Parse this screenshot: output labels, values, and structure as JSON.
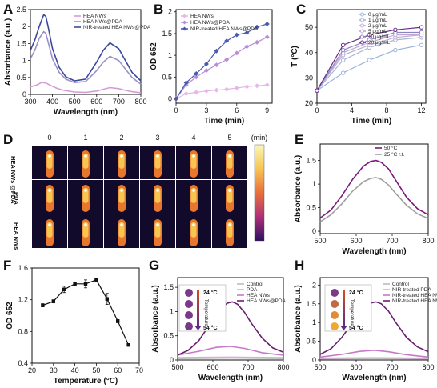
{
  "figure": {
    "panel_labels": [
      "A",
      "B",
      "C",
      "D",
      "E",
      "F",
      "G",
      "H"
    ]
  },
  "chart_data": [
    {
      "panel": "A",
      "type": "line",
      "xlabel": "Wavelength (nm)",
      "ylabel": "Absorbance (a.u.)",
      "xlim": [
        300,
        800
      ],
      "ylim": [
        0,
        2.5
      ],
      "xticks": [
        300,
        400,
        500,
        600,
        700,
        800
      ],
      "yticks": [
        0,
        0.5,
        1,
        1.5,
        2,
        2.5
      ],
      "grid": false,
      "legend": "top-right",
      "series": [
        {
          "name": "HEA NWs",
          "color": "#d59bd5",
          "x": [
            300,
            330,
            350,
            370,
            390,
            420,
            450,
            500,
            550,
            600,
            630,
            660,
            700,
            730,
            760,
            800
          ],
          "y": [
            0.22,
            0.28,
            0.35,
            0.34,
            0.27,
            0.18,
            0.12,
            0.07,
            0.06,
            0.1,
            0.15,
            0.2,
            0.17,
            0.12,
            0.08,
            0.05
          ]
        },
        {
          "name": "HEA NWs@PDA",
          "color": "#9a8fc9",
          "x": [
            300,
            320,
            340,
            360,
            370,
            380,
            400,
            430,
            460,
            500,
            550,
            600,
            630,
            660,
            700,
            730,
            760,
            800
          ],
          "y": [
            1.05,
            1.3,
            1.65,
            1.85,
            1.8,
            1.55,
            1.05,
            0.65,
            0.45,
            0.35,
            0.38,
            0.7,
            0.95,
            1.12,
            1.0,
            0.75,
            0.5,
            0.3
          ]
        },
        {
          "name": "NIR-treated HEA NWs@PDA",
          "color": "#3a4a9a",
          "x": [
            300,
            320,
            340,
            360,
            370,
            380,
            400,
            430,
            460,
            500,
            550,
            600,
            630,
            660,
            700,
            730,
            760,
            800
          ],
          "y": [
            1.3,
            1.6,
            2.0,
            2.35,
            2.3,
            2.0,
            1.35,
            0.8,
            0.52,
            0.4,
            0.45,
            0.95,
            1.3,
            1.52,
            1.35,
            1.0,
            0.65,
            0.4
          ]
        }
      ]
    },
    {
      "panel": "B",
      "type": "line",
      "xlabel": "Time (min)",
      "ylabel": "OD 652",
      "xlim": [
        0,
        9.5
      ],
      "ylim": [
        -0.1,
        2.05
      ],
      "xticks": [
        0,
        3,
        6,
        9
      ],
      "yticks": [
        0,
        0.5,
        1,
        1.5,
        2
      ],
      "grid": false,
      "legend": "top-left",
      "series": [
        {
          "name": "HEA NWs",
          "color": "#e7b8e7",
          "x": [
            0,
            1,
            2,
            3,
            4,
            5,
            6,
            7,
            8,
            9
          ],
          "y": [
            0,
            0.12,
            0.15,
            0.18,
            0.2,
            0.22,
            0.25,
            0.28,
            0.3,
            0.32
          ]
        },
        {
          "name": "HEA NWs@PDA",
          "color": "#b78fd6",
          "x": [
            0,
            1,
            2,
            3,
            4,
            5,
            6,
            7,
            8,
            9
          ],
          "y": [
            0,
            0.32,
            0.5,
            0.65,
            0.78,
            0.9,
            1.05,
            1.2,
            1.3,
            1.42
          ]
        },
        {
          "name": "NIR-treated HEA NWs@PDA",
          "color": "#4a5ab0",
          "x": [
            0,
            1,
            2,
            3,
            4,
            5,
            6,
            7,
            8,
            9
          ],
          "y": [
            0,
            0.37,
            0.58,
            0.8,
            1.1,
            1.33,
            1.47,
            1.52,
            1.65,
            1.72
          ]
        }
      ]
    },
    {
      "panel": "C",
      "type": "line",
      "xlabel": "Time (min)",
      "ylabel": "T (°C)",
      "xlim": [
        0,
        12.5
      ],
      "ylim": [
        20,
        57
      ],
      "xticks": [
        0,
        4,
        8,
        12
      ],
      "yticks": [
        20,
        30,
        40,
        50
      ],
      "grid": false,
      "legend": "top-right",
      "series": [
        {
          "name": "0 μg/mL",
          "color": "#9ab3dc",
          "x": [
            0,
            3,
            6,
            9,
            12
          ],
          "y": [
            25,
            32,
            37,
            41,
            43
          ]
        },
        {
          "name": "1 μg/mL",
          "color": "#a7b7d6",
          "x": [
            0,
            3,
            6,
            9,
            12
          ],
          "y": [
            25,
            37,
            42,
            45,
            46
          ]
        },
        {
          "name": "2 μg/mL",
          "color": "#b9b0d3",
          "x": [
            0,
            3,
            6,
            9,
            12
          ],
          "y": [
            25,
            39,
            43,
            46,
            47
          ]
        },
        {
          "name": "5 μg/mL",
          "color": "#c6a9d1",
          "x": [
            0,
            3,
            6,
            9,
            12
          ],
          "y": [
            25,
            40,
            44,
            47,
            47
          ]
        },
        {
          "name": "10 μg/mL",
          "color": "#8a86c4",
          "x": [
            0,
            3,
            6,
            9,
            12
          ],
          "y": [
            25,
            41,
            45,
            48,
            48
          ]
        },
        {
          "name": "20 μg/mL",
          "color": "#6a2c8a",
          "x": [
            0,
            3,
            6,
            9,
            12
          ],
          "y": [
            25,
            43,
            47,
            49,
            50
          ]
        }
      ]
    },
    {
      "panel": "E",
      "type": "line",
      "xlabel": "Wavelength (nm)",
      "ylabel": "Absorbance (a.u.)",
      "xlim": [
        500,
        800
      ],
      "ylim": [
        -0.05,
        1.85
      ],
      "xticks": [
        500,
        600,
        700,
        800
      ],
      "yticks": [
        0,
        0.5,
        1,
        1.5
      ],
      "grid": false,
      "legend": "top-right",
      "series": [
        {
          "name": "50 °C",
          "color": "#7a1a7a",
          "x": [
            500,
            530,
            560,
            590,
            620,
            640,
            655,
            670,
            690,
            710,
            740,
            770,
            800
          ],
          "y": [
            0.28,
            0.45,
            0.75,
            1.1,
            1.38,
            1.48,
            1.5,
            1.46,
            1.32,
            1.08,
            0.72,
            0.48,
            0.35
          ]
        },
        {
          "name": "25 °C r.t.",
          "color": "#9e9e9e",
          "x": [
            500,
            530,
            560,
            590,
            620,
            640,
            655,
            670,
            690,
            710,
            740,
            770,
            800
          ],
          "y": [
            0.2,
            0.35,
            0.58,
            0.85,
            1.05,
            1.12,
            1.14,
            1.1,
            0.98,
            0.8,
            0.55,
            0.37,
            0.27
          ]
        }
      ]
    },
    {
      "panel": "F",
      "type": "line",
      "xlabel": "Temperature (°C)",
      "ylabel": "OD 652",
      "xlim": [
        20,
        70
      ],
      "ylim": [
        0.4,
        1.6
      ],
      "xticks": [
        20,
        30,
        40,
        50,
        60,
        70
      ],
      "yticks": [
        0.4,
        0.8,
        1.2,
        1.6
      ],
      "grid": false,
      "x": [
        25,
        30,
        35,
        40,
        45,
        50,
        55,
        60,
        65
      ],
      "y": [
        1.13,
        1.18,
        1.33,
        1.4,
        1.4,
        1.45,
        1.21,
        0.93,
        0.63
      ],
      "errors": [
        0.02,
        0.02,
        0.04,
        0.02,
        0.05,
        0.02,
        0.07,
        0.02,
        0.01
      ]
    },
    {
      "panel": "G",
      "type": "line",
      "xlabel": "Wavelength (nm)",
      "ylabel": "Absorbance (a.u.)",
      "xlim": [
        500,
        800
      ],
      "ylim": [
        0,
        1.7
      ],
      "xticks": [
        500,
        600,
        700,
        800
      ],
      "yticks": [
        0,
        0.5,
        1,
        1.5
      ],
      "grid": false,
      "legend": "top-right",
      "series": [
        {
          "name": "Control",
          "color": "#bdbdbd",
          "x": [
            500,
            650,
            800
          ],
          "y": [
            0.03,
            0.04,
            0.03
          ]
        },
        {
          "name": "PDA",
          "color": "#e2a6e2",
          "x": [
            500,
            650,
            800
          ],
          "y": [
            0.05,
            0.06,
            0.05
          ]
        },
        {
          "name": "HEA NWs",
          "color": "#c779c7",
          "x": [
            500,
            560,
            610,
            650,
            690,
            740,
            800
          ],
          "y": [
            0.1,
            0.18,
            0.26,
            0.28,
            0.24,
            0.15,
            0.1
          ]
        },
        {
          "name": "HEA NWs@PDA",
          "color": "#6a1d6e",
          "x": [
            500,
            530,
            560,
            590,
            620,
            640,
            655,
            670,
            690,
            710,
            740,
            770,
            800
          ],
          "y": [
            0.1,
            0.2,
            0.4,
            0.72,
            1.03,
            1.17,
            1.2,
            1.15,
            0.98,
            0.75,
            0.45,
            0.25,
            0.16
          ]
        }
      ],
      "inset": {
        "top": "24 °C",
        "bottom": "54 °C",
        "arrow_label": "Temperature"
      }
    },
    {
      "panel": "H",
      "type": "line",
      "xlabel": "Wavelength (nm)",
      "ylabel": "Absorbance (a.u.)",
      "xlim": [
        500,
        800
      ],
      "ylim": [
        0,
        2.2
      ],
      "xticks": [
        500,
        600,
        700,
        800
      ],
      "yticks": [
        0,
        0.5,
        1,
        1.5,
        2
      ],
      "grid": false,
      "legend": "top-right",
      "series": [
        {
          "name": "Control",
          "color": "#bdbdbd",
          "x": [
            500,
            650,
            800
          ],
          "y": [
            0.03,
            0.04,
            0.03
          ]
        },
        {
          "name": "NIR-treated PDA",
          "color": "#e2a6e2",
          "x": [
            500,
            650,
            800
          ],
          "y": [
            0.05,
            0.06,
            0.05
          ]
        },
        {
          "name": "NIR-treated HEA NWs",
          "color": "#c779c7",
          "x": [
            500,
            560,
            610,
            650,
            690,
            740,
            800
          ],
          "y": [
            0.08,
            0.15,
            0.23,
            0.26,
            0.22,
            0.14,
            0.08
          ]
        },
        {
          "name": "NIR-treated HEA NWs@PDA",
          "color": "#6a1d6e",
          "x": [
            500,
            530,
            560,
            590,
            620,
            640,
            655,
            670,
            690,
            710,
            740,
            770,
            800
          ],
          "y": [
            0.15,
            0.3,
            0.6,
            1.0,
            1.38,
            1.52,
            1.55,
            1.5,
            1.3,
            1.0,
            0.6,
            0.35,
            0.22
          ]
        }
      ],
      "inset": {
        "top": "24 °C",
        "bottom": "54 °C",
        "arrow_label": "Temperature"
      }
    },
    {
      "panel": "D",
      "type": "heatmap",
      "unit": "(min)",
      "columns": [
        "0",
        "1",
        "2",
        "3",
        "4",
        "5"
      ],
      "rows": [
        "HEA NWs @PDA",
        "PDA",
        "HEA NWs"
      ]
    }
  ]
}
